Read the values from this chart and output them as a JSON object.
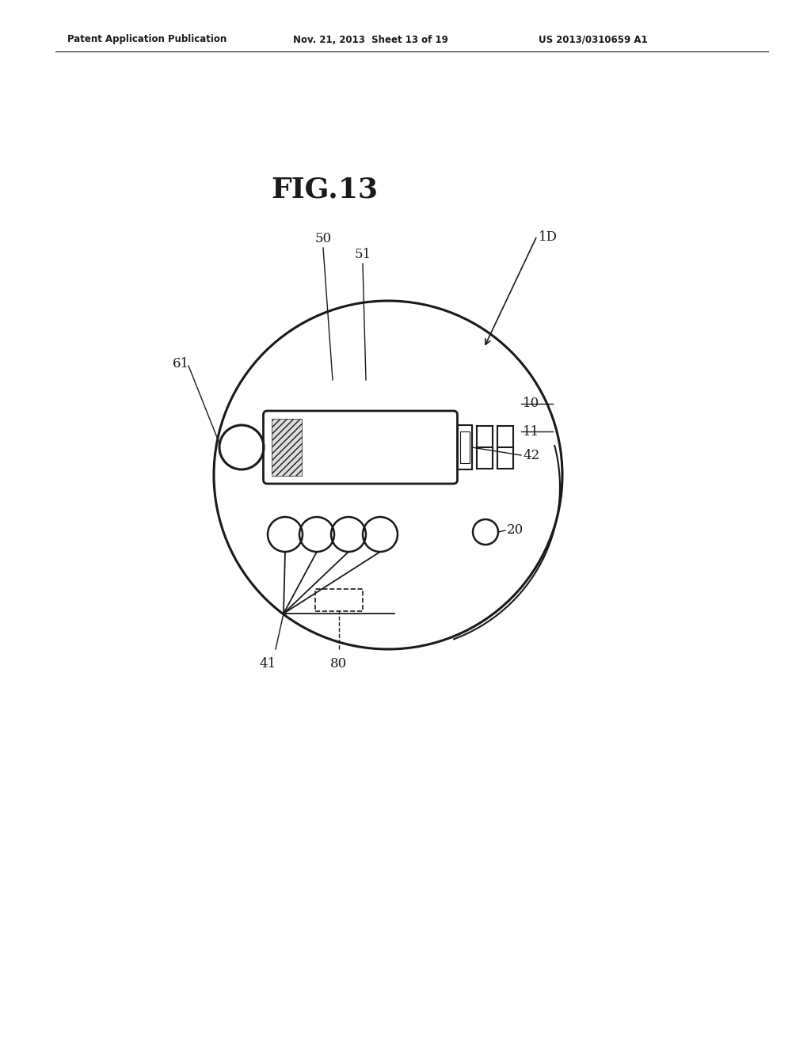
{
  "bg_color": "#ffffff",
  "line_color": "#1a1a1a",
  "title": "FIG.13",
  "header_left": "Patent Application Publication",
  "header_mid": "Nov. 21, 2013  Sheet 13 of 19",
  "header_right": "US 2013/0310659 A1"
}
